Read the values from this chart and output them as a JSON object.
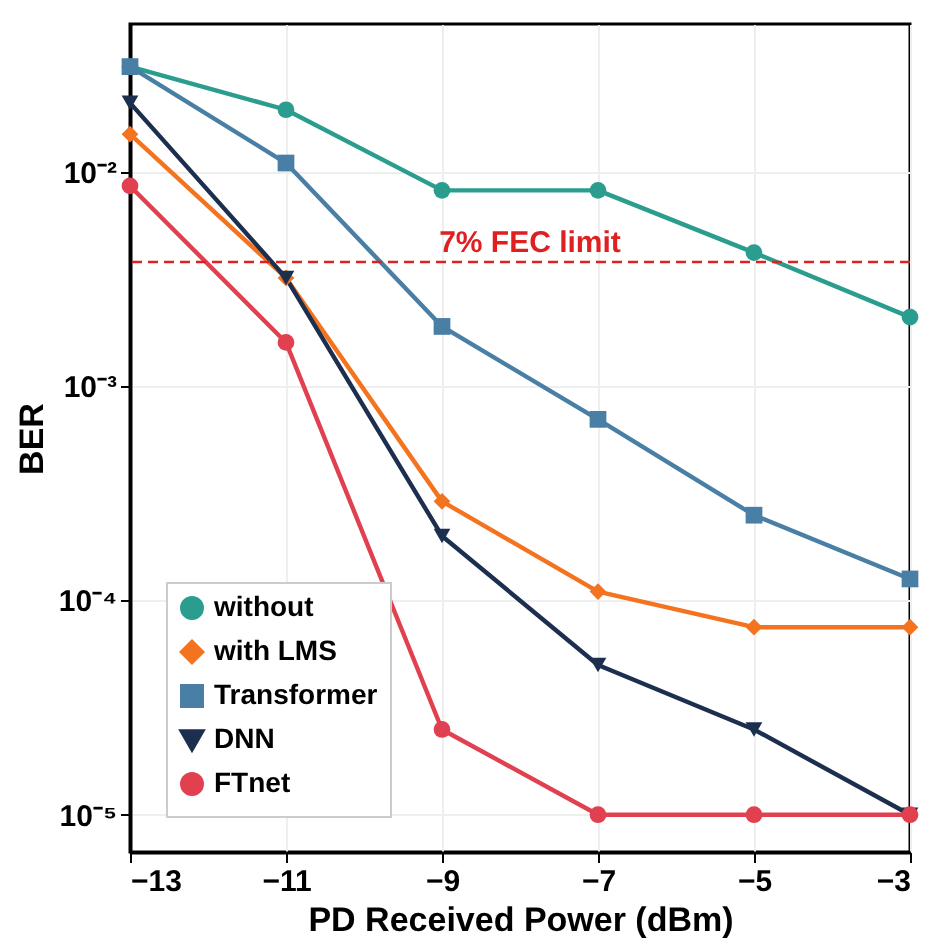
{
  "chart_data": {
    "type": "line",
    "xlabel": "PD Received Power (dBm)",
    "ylabel": "BER",
    "x": [
      -13,
      -11,
      -9,
      -7,
      -5,
      -3
    ],
    "series": [
      {
        "name": "without",
        "color": "#2a9d8f",
        "marker": "circle",
        "values": [
          0.031,
          0.0195,
          0.0082,
          0.0082,
          0.0042,
          0.0021
        ]
      },
      {
        "name": "with LMS",
        "color": "#f4731f",
        "marker": "diamond",
        "values": [
          0.015,
          0.0032,
          0.00029,
          0.00011,
          7.5e-05,
          7.5e-05
        ]
      },
      {
        "name": "Transformer",
        "color": "#4a7fa5",
        "marker": "square",
        "values": [
          0.031,
          0.011,
          0.0019,
          0.0007,
          0.00025,
          0.000126
        ]
      },
      {
        "name": "DNN",
        "color": "#1d2f4f",
        "marker": "triangle",
        "values": [
          0.021,
          0.0032,
          0.0002,
          5e-05,
          2.5e-05,
          1e-05
        ]
      },
      {
        "name": "FTnet",
        "color": "#e0404f",
        "marker": "circle",
        "values": [
          0.0086,
          0.0016,
          2.5e-05,
          1e-05,
          1e-05,
          1e-05
        ]
      }
    ],
    "log": "y",
    "xlim": [
      -13,
      -3
    ],
    "xticks": [
      -13,
      -11,
      -9,
      -7,
      -5,
      -3
    ],
    "ylim": [
      6.7e-06,
      0.049
    ],
    "yticks": [
      {
        "value": 1e-05,
        "label": "10⁻⁵"
      },
      {
        "value": 0.0001,
        "label": "10⁻⁴"
      },
      {
        "value": 0.001,
        "label": "10⁻³"
      },
      {
        "value": 0.01,
        "label": "10⁻²"
      }
    ],
    "ref_lines": [
      {
        "axis": "y",
        "value": 0.0038,
        "label": "7% FEC limit",
        "color": "#e02020",
        "line_style": "dashed"
      }
    ],
    "grid": true,
    "legend": "bottom left"
  }
}
